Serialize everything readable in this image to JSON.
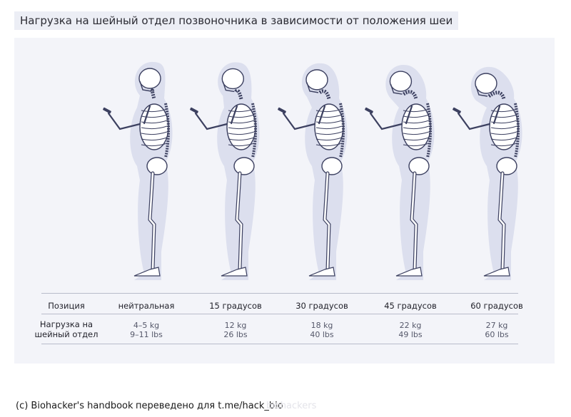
{
  "title": "Нагрузка на шейный отдел позвоночника в зависимости от положения шеи",
  "table": {
    "row_header": "Позиция",
    "row_label_line1": "Нагрузка на",
    "row_label_line2": "шейный отдел",
    "columns": [
      {
        "position": "нейтральная",
        "kg": "4–5 kg",
        "lbs": "9–11 lbs",
        "angle": 0
      },
      {
        "position": "15 градусов",
        "kg": "12 kg",
        "lbs": "26 lbs",
        "angle": 15
      },
      {
        "position": "30 градусов",
        "kg": "18 kg",
        "lbs": "40 lbs",
        "angle": 30
      },
      {
        "position": "45 градусов",
        "kg": "22 kg",
        "lbs": "49 lbs",
        "angle": 45
      },
      {
        "position": "60 градусов",
        "kg": "27 kg",
        "lbs": "60 lbs",
        "angle": 60
      }
    ]
  },
  "footer": {
    "credit": "(c) Biohacker's handbook",
    "translation": "переведено для t.me/hack_bio",
    "watermark": "biohackers"
  },
  "colors": {
    "silhouette": "#dcdfee",
    "bone_fill": "#ffffff",
    "bone_stroke": "#3c4060",
    "panel": "#f3f4f9"
  }
}
